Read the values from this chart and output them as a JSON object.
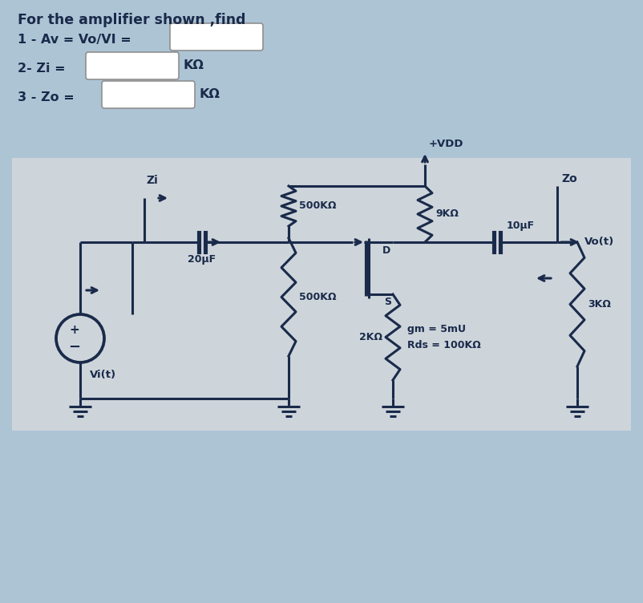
{
  "bg_top": "#adc4d5",
  "bg_circuit": "#cdd5db",
  "line_color": "#1a2a4a",
  "title_text": "For the amplifier shown ,find",
  "q1_text": "1 - Av = Vo/VI =",
  "q2_text": "2- Zi =",
  "q3_text": "3 - Zo =",
  "unit_kohm": "KΩ",
  "vdd_label": "+VDD",
  "r9k_label": "9KΩ",
  "r500u_label": "500KΩ",
  "r500l_label": "500KΩ",
  "r2k_label": "2KΩ",
  "r3k_label": "3KΩ",
  "c20_label": "20μF",
  "c10_label": "10μF",
  "gm_label": "gm = 5mU",
  "rds_label": "Rds = 100KΩ",
  "zi_label": "Zi",
  "zo_label": "Zo",
  "vi_label": "Vi(t)",
  "vo_label": "Vo(t)",
  "d_label": "D",
  "s_label": "S"
}
